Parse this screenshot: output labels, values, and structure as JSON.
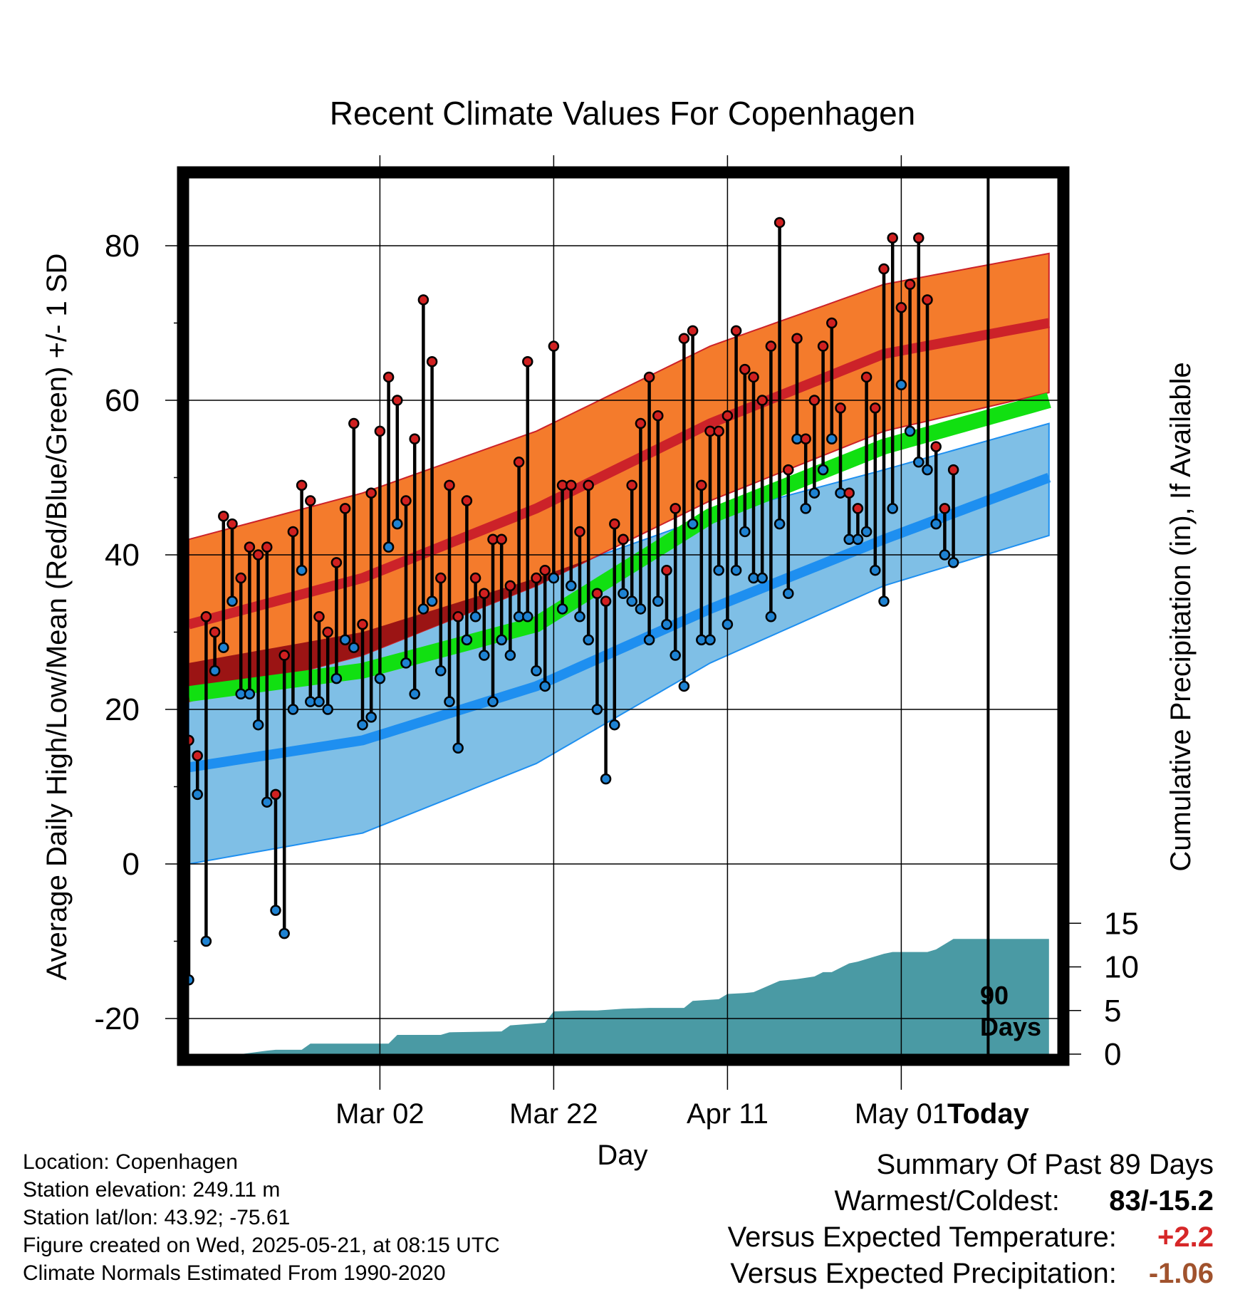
{
  "chart_data": {
    "type": "line",
    "title": "Recent Climate Values For Copenhagen",
    "xlabel": "Day",
    "ylabel": "Average Daily High/Low/Mean (Red/Blue/Green) +/- 1 SD",
    "y2label": "Cumulative Precipitation (in), If Available",
    "ylim": [
      -25,
      88
    ],
    "y2lim": [
      0,
      40
    ],
    "yticks": [
      "80",
      "60",
      "40",
      "20",
      "0",
      "-20"
    ],
    "y2ticks": [
      "15",
      "10",
      "5",
      "0"
    ],
    "xticks": [
      "Mar 02",
      "Mar 22",
      "Apr 11",
      "May 01",
      "Today"
    ],
    "today_label": "90 Days",
    "grid": true,
    "colors": {
      "high_band": "#f47b2c",
      "high_mean": "#cc2229",
      "low_band": "#7fbfe6",
      "low_mean": "#1e8ff0",
      "mean_band": "#11e011",
      "overlap": "#9b1414",
      "precip": "#4a9aa4",
      "high_marker": "#d02020",
      "low_marker": "#1e82d2"
    },
    "normal_high": {
      "days": [
        0,
        20,
        40,
        60,
        80,
        99
      ],
      "mean": [
        31,
        37,
        46,
        57,
        66,
        70
      ],
      "upper": [
        42,
        48,
        56,
        67,
        75,
        79
      ],
      "lower": [
        21,
        27,
        36,
        47,
        56,
        61
      ]
    },
    "normal_low": {
      "days": [
        0,
        20,
        40,
        60,
        80,
        99
      ],
      "mean": [
        12.5,
        16,
        23,
        33,
        42,
        50
      ],
      "upper": [
        26,
        30,
        37,
        45,
        51,
        57
      ],
      "lower": [
        0,
        4,
        13,
        26,
        36,
        42.5
      ]
    },
    "normal_mean": {
      "days": [
        0,
        20,
        40,
        60,
        80,
        99
      ],
      "mean": [
        22,
        25,
        31,
        45,
        54,
        60
      ]
    },
    "series": [
      {
        "name": "High",
        "values": [
          16,
          14,
          32,
          30,
          45,
          44,
          37,
          41,
          40,
          41,
          9,
          27,
          43,
          49,
          47,
          32,
          30,
          39,
          46,
          57,
          31,
          48,
          56,
          63,
          60,
          47,
          55,
          73,
          65,
          37,
          49,
          32,
          47,
          37,
          35,
          42,
          42,
          36,
          52,
          65,
          37,
          38,
          67,
          49,
          49,
          43,
          49,
          35,
          34,
          44,
          42,
          49,
          57,
          63,
          58,
          38,
          46,
          68,
          69,
          49,
          56,
          56,
          58,
          69,
          64,
          63,
          60,
          67,
          83,
          51,
          68,
          55,
          60,
          67,
          70,
          59,
          48,
          46,
          63,
          59,
          77,
          81,
          72,
          75,
          81,
          73,
          54,
          46,
          51
        ]
      },
      {
        "name": "Low",
        "values": [
          -15,
          9,
          -10,
          25,
          28,
          34,
          22,
          22,
          18,
          8,
          -6,
          -9,
          20,
          38,
          21,
          21,
          20,
          24,
          29,
          28,
          18,
          19,
          24,
          41,
          44,
          26,
          22,
          33,
          34,
          25,
          21,
          15,
          29,
          32,
          27,
          21,
          29,
          27,
          32,
          32,
          25,
          23,
          37,
          33,
          36,
          32,
          29,
          20,
          11,
          18,
          35,
          34,
          33,
          29,
          34,
          31,
          27,
          23,
          44,
          29,
          29,
          38,
          31,
          38,
          43,
          37,
          37,
          32,
          44,
          35,
          55,
          46,
          48,
          51,
          55,
          48,
          42,
          42,
          43,
          38,
          34,
          46,
          62,
          56,
          52,
          51,
          44,
          40,
          39
        ]
      },
      {
        "name": "Precipitation",
        "days": [
          0,
          6,
          9,
          10,
          13,
          14,
          23,
          24,
          29,
          30,
          36,
          37,
          41,
          42,
          45,
          47,
          50,
          53,
          57,
          58,
          61,
          62,
          64,
          65,
          68,
          70,
          72,
          73,
          74,
          76,
          77,
          80,
          81,
          85,
          86,
          88,
          90,
          99
        ],
        "values": [
          0,
          0,
          0.4,
          0.5,
          0.5,
          1.2,
          1.2,
          2.2,
          2.2,
          2.5,
          2.6,
          3.3,
          3.6,
          4.9,
          5.0,
          5.0,
          5.2,
          5.3,
          5.3,
          6.1,
          6.3,
          6.9,
          7.0,
          7.1,
          8.4,
          8.6,
          8.9,
          9.4,
          9.4,
          10.4,
          10.6,
          11.5,
          11.7,
          11.7,
          12.0,
          13.2,
          13.2,
          13.2
        ]
      }
    ]
  },
  "footer": {
    "location": "Location: Copenhagen",
    "elevation": "Station elevation: 249.11 m",
    "latlon": "Station lat/lon: 43.92; -75.61",
    "created": "Figure created on Wed, 2025-05-21, at 08:15 UTC",
    "normals": "Climate Normals Estimated From 1990-2020"
  },
  "summary": {
    "heading": "Summary Of Past 89 Days",
    "warmest_label": "Warmest/Coldest:",
    "warmest_value": "83/-15.2",
    "temp_label": "Versus Expected Temperature:",
    "temp_value": "+2.2",
    "precip_label": "Versus Expected Precipitation:",
    "precip_value": "-1.06"
  }
}
